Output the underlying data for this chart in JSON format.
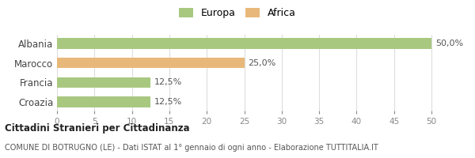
{
  "categories": [
    "Albania",
    "Marocco",
    "Francia",
    "Croazia"
  ],
  "values": [
    50.0,
    25.0,
    12.5,
    12.5
  ],
  "bar_colors": [
    "#a8c880",
    "#e8b87a",
    "#a8c880",
    "#a8c880"
  ],
  "labels": [
    "50,0%",
    "25,0%",
    "12,5%",
    "12,5%"
  ],
  "legend": [
    {
      "label": "Europa",
      "color": "#a8c880"
    },
    {
      "label": "Africa",
      "color": "#e8b87a"
    }
  ],
  "xlim": [
    0,
    52
  ],
  "xticks": [
    0,
    5,
    10,
    15,
    20,
    25,
    30,
    35,
    40,
    45,
    50
  ],
  "title_bold": "Cittadini Stranieri per Cittadinanza",
  "title_sub": "COMUNE DI BOTRUGNO (LE) - Dati ISTAT al 1° gennaio di ogni anno - Elaborazione TUTTITALIA.IT",
  "background_color": "#ffffff",
  "grid_color": "#dddddd",
  "bar_height": 0.55
}
